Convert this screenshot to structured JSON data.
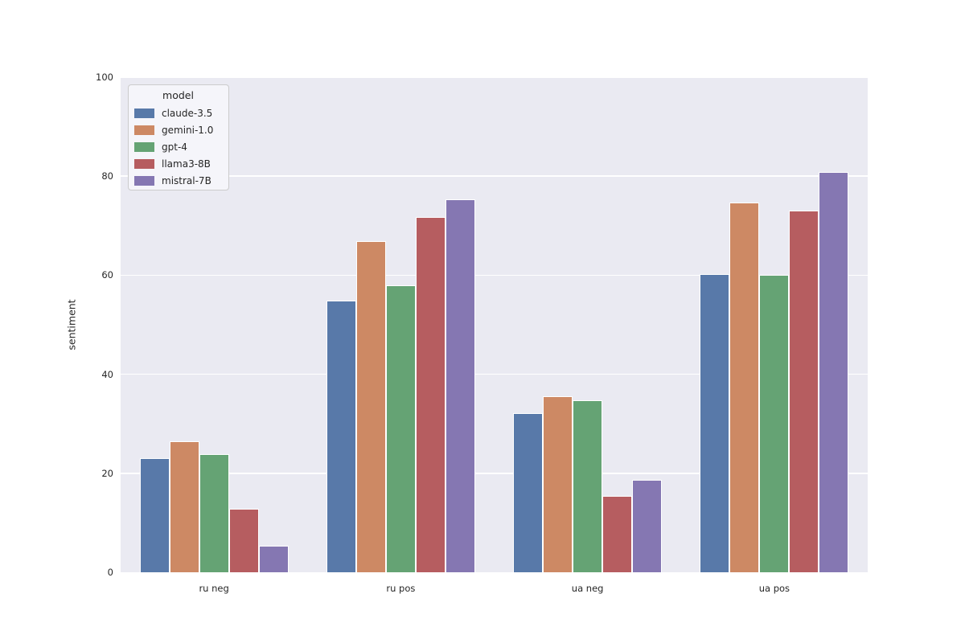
{
  "figure": {
    "background": "#ffffff",
    "axes_background": "#eaeaf2",
    "grid_color": "#ffffff",
    "text_color": "#262626"
  },
  "chart_data": {
    "type": "bar",
    "title": "",
    "xlabel": "",
    "ylabel": "sentiment",
    "categories": [
      "ru neg",
      "ru pos",
      "ua neg",
      "ua pos"
    ],
    "series": [
      {
        "name": "claude-3.5",
        "color": "#5879a9",
        "values": [
          23.0,
          54.8,
          32.1,
          60.2
        ]
      },
      {
        "name": "gemini-1.0",
        "color": "#cd8964",
        "values": [
          26.4,
          66.9,
          35.5,
          74.6
        ]
      },
      {
        "name": "gpt-4",
        "color": "#65a374",
        "values": [
          23.8,
          57.9,
          34.7,
          60.0
        ]
      },
      {
        "name": "llama3-8B",
        "color": "#b65d60",
        "values": [
          12.9,
          71.8,
          15.4,
          73.0
        ]
      },
      {
        "name": "mistral-7B",
        "color": "#8577b2",
        "values": [
          5.4,
          75.3,
          18.6,
          80.8
        ]
      }
    ],
    "ylim": [
      0,
      100
    ],
    "yticks": [
      0,
      20,
      40,
      60,
      80,
      100
    ],
    "grid": true,
    "legend": {
      "title": "model",
      "position": "upper left"
    }
  }
}
